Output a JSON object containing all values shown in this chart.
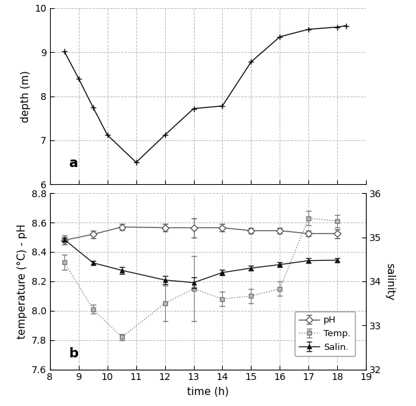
{
  "depth_time": [
    8.5,
    9.0,
    9.5,
    10.0,
    11.0,
    12.0,
    13.0,
    14.0,
    15.0,
    16.0,
    17.0,
    18.0,
    18.3
  ],
  "depth_values": [
    9.02,
    8.4,
    7.75,
    7.12,
    6.5,
    7.12,
    7.72,
    7.78,
    8.78,
    9.35,
    9.52,
    9.57,
    9.6
  ],
  "depth_ylim": [
    6,
    10
  ],
  "depth_yticks": [
    6,
    7,
    8,
    9,
    10
  ],
  "param_time": [
    8.5,
    9.5,
    10.5,
    12.0,
    13.0,
    14.0,
    15.0,
    16.0,
    17.0,
    18.0
  ],
  "ph_values": [
    8.48,
    8.52,
    8.57,
    8.565,
    8.565,
    8.565,
    8.545,
    8.545,
    8.525,
    8.525
  ],
  "ph_err": [
    0.03,
    0.025,
    0.02,
    0.025,
    0.065,
    0.025,
    0.02,
    0.02,
    0.02,
    0.03
  ],
  "temp_values": [
    8.33,
    8.01,
    7.82,
    8.05,
    8.15,
    8.08,
    8.1,
    8.15,
    8.63,
    8.61
  ],
  "temp_err": [
    0.05,
    0.03,
    0.02,
    0.12,
    0.22,
    0.05,
    0.05,
    0.05,
    0.05,
    0.04
  ],
  "salin_values": [
    34.95,
    34.42,
    34.25,
    34.03,
    33.97,
    34.2,
    34.3,
    34.38,
    34.47,
    34.48
  ],
  "salin_err": [
    0.05,
    0.05,
    0.08,
    0.1,
    0.12,
    0.06,
    0.05,
    0.06,
    0.05,
    0.04
  ],
  "param_ylim": [
    7.6,
    8.8
  ],
  "param_yticks": [
    7.6,
    7.8,
    8.0,
    8.2,
    8.4,
    8.6,
    8.8
  ],
  "salin_ylim": [
    32,
    36
  ],
  "salin_yticks": [
    32,
    33,
    34,
    35,
    36
  ],
  "xlim": [
    8,
    19
  ],
  "xticks": [
    8,
    9,
    10,
    11,
    12,
    13,
    14,
    15,
    16,
    17,
    18,
    19
  ],
  "background": "#ffffff",
  "grid_color": "#bbbbbb",
  "grid_linestyle": "--",
  "grid_linewidth": 0.7
}
